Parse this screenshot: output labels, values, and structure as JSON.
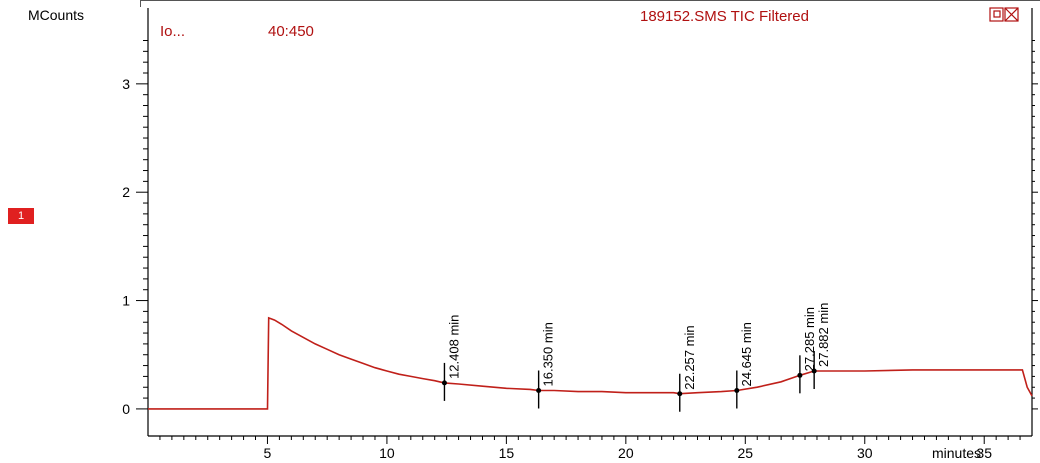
{
  "header": {
    "ion_label": "Io...",
    "ion_range": "40:450",
    "trace_title": "189152.SMS TIC Filtered"
  },
  "trace_badge": "1",
  "colors": {
    "trace": "#c0201a",
    "header": "#b01010",
    "badge": "#e02020"
  },
  "chart_data": {
    "type": "line",
    "ylabel": "MCounts",
    "xlabel": "minutes",
    "xlim": [
      0,
      37
    ],
    "ylim": [
      -0.25,
      3.7
    ],
    "x_ticks": [
      5,
      10,
      15,
      20,
      25,
      30,
      35
    ],
    "y_ticks": [
      0,
      1,
      2,
      3
    ],
    "series": [
      {
        "points": [
          [
            0,
            0
          ],
          [
            4.9,
            0
          ],
          [
            5.0,
            0.0
          ],
          [
            5.05,
            0.84
          ],
          [
            5.3,
            0.82
          ],
          [
            5.6,
            0.78
          ],
          [
            6.0,
            0.72
          ],
          [
            6.5,
            0.66
          ],
          [
            7.0,
            0.6
          ],
          [
            7.5,
            0.55
          ],
          [
            8.0,
            0.5
          ],
          [
            8.5,
            0.46
          ],
          [
            9.0,
            0.42
          ],
          [
            9.5,
            0.38
          ],
          [
            10.0,
            0.35
          ],
          [
            10.5,
            0.32
          ],
          [
            11.0,
            0.3
          ],
          [
            11.5,
            0.28
          ],
          [
            12.0,
            0.26
          ],
          [
            12.4,
            0.24
          ],
          [
            13.0,
            0.23
          ],
          [
            14.0,
            0.21
          ],
          [
            15.0,
            0.19
          ],
          [
            16.0,
            0.18
          ],
          [
            16.35,
            0.17
          ],
          [
            17.0,
            0.17
          ],
          [
            18.0,
            0.16
          ],
          [
            19.0,
            0.16
          ],
          [
            20.0,
            0.15
          ],
          [
            21.0,
            0.15
          ],
          [
            22.0,
            0.15
          ],
          [
            22.26,
            0.14
          ],
          [
            23.0,
            0.15
          ],
          [
            24.0,
            0.16
          ],
          [
            24.65,
            0.17
          ],
          [
            25.5,
            0.2
          ],
          [
            26.5,
            0.25
          ],
          [
            27.29,
            0.31
          ],
          [
            27.88,
            0.35
          ],
          [
            28.5,
            0.35
          ],
          [
            30.0,
            0.35
          ],
          [
            32.0,
            0.36
          ],
          [
            34.0,
            0.36
          ],
          [
            35.0,
            0.36
          ],
          [
            36.0,
            0.36
          ],
          [
            36.6,
            0.36
          ],
          [
            36.8,
            0.2
          ],
          [
            37.0,
            0.12
          ]
        ]
      }
    ],
    "annotations": [
      {
        "x": 12.408,
        "y": 0.24,
        "label": "12.408 min"
      },
      {
        "x": 16.35,
        "y": 0.17,
        "label": "16.350 min"
      },
      {
        "x": 22.257,
        "y": 0.14,
        "label": "22.257 min"
      },
      {
        "x": 24.645,
        "y": 0.17,
        "label": "24.645 min"
      },
      {
        "x": 27.285,
        "y": 0.31,
        "label": "27.285 min"
      },
      {
        "x": 27.882,
        "y": 0.35,
        "label": "27.882 min"
      }
    ]
  }
}
